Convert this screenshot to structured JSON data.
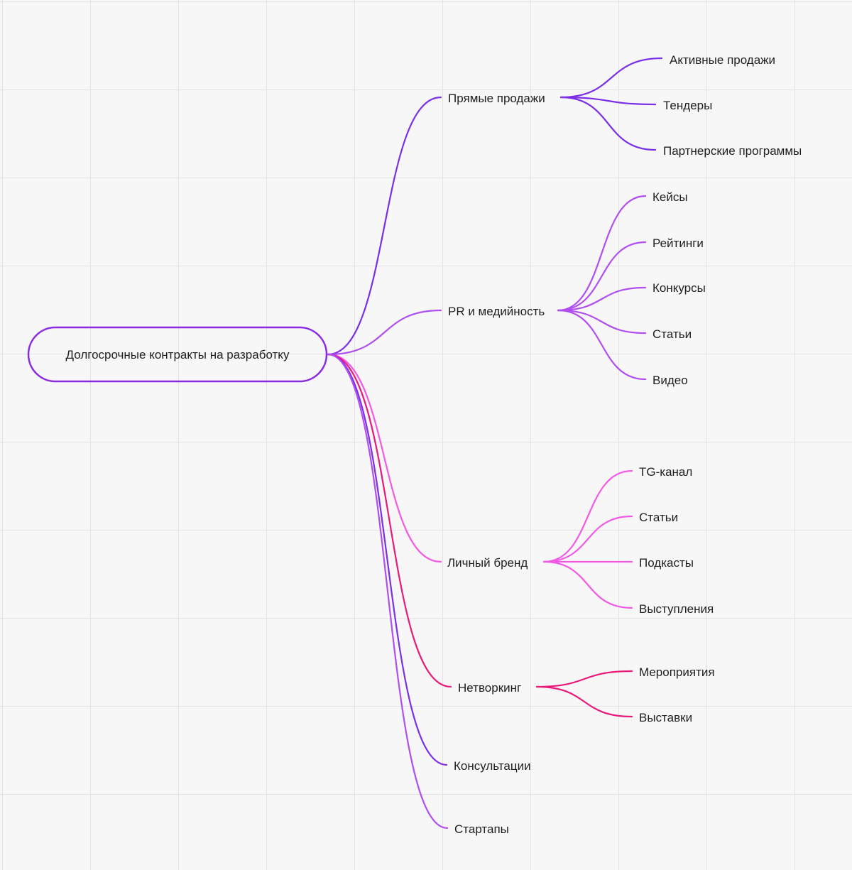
{
  "root": {
    "label": "Долгосрочные контракты на разработку",
    "color": "#8a2be2"
  },
  "branches": [
    {
      "label": "Прямые продажи",
      "color": "#7b2fe6",
      "children": [
        "Активные продажи",
        "Тендеры",
        "Партнерские программы"
      ]
    },
    {
      "label": "PR и медийность",
      "color": "#b04ef0",
      "children": [
        "Кейсы",
        "Рейтинги",
        "Конкурсы",
        "Статьи",
        "Видео"
      ]
    },
    {
      "label": "Личный бренд",
      "color": "#f25ae6",
      "children": [
        "TG-канал",
        "Статьи",
        "Подкасты",
        "Выступления"
      ]
    },
    {
      "label": "Нетворкинг",
      "color": "#e81a7a",
      "children": [
        "Мероприятия",
        "Выставки"
      ]
    },
    {
      "label": "Консультации",
      "color": "#7b2fe6",
      "children": []
    },
    {
      "label": "Стартапы",
      "color": "#b04ef0",
      "children": []
    }
  ]
}
